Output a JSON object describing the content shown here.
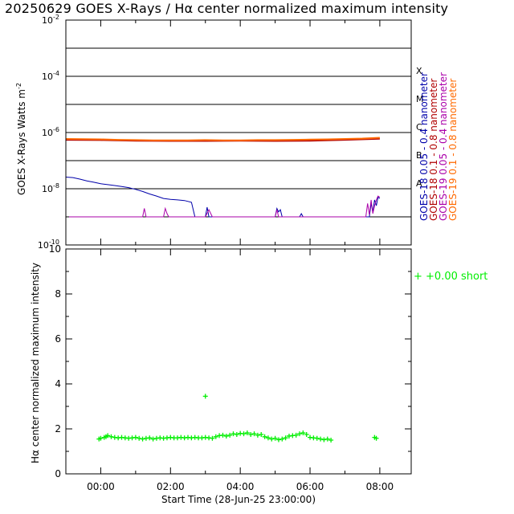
{
  "title": "20250629 GOES X-Rays / Hα center normalized maximum intensity",
  "chart_data": [
    {
      "type": "line",
      "ylabel": "GOES X-Rays Watts m",
      "ylabel_superscript": "-2",
      "yscale": "log",
      "ylim": [
        1e-10,
        0.01
      ],
      "y_tick_mantissa": "10",
      "y_ticks": [
        {
          "exp": "-2",
          "v": 0.01
        },
        {
          "exp": "-4",
          "v": 0.0001
        },
        {
          "exp": "-6",
          "v": 1e-06
        },
        {
          "exp": "-8",
          "v": 1e-08
        },
        {
          "exp": "-10",
          "v": 1e-10
        }
      ],
      "flare_class_lines": [
        0.001,
        0.0001,
        1e-05,
        1e-06,
        1e-07,
        1e-08,
        1e-09
      ],
      "flare_classes": [
        {
          "label": "X",
          "v": 0.0001
        },
        {
          "label": "M",
          "v": 1e-05
        },
        {
          "label": "C",
          "v": 1e-06
        },
        {
          "label": "B",
          "v": 1e-07
        },
        {
          "label": "A",
          "v": 1e-08
        }
      ],
      "xlim_hours": [
        -1.0,
        8.9
      ],
      "grid": false,
      "legend_position": "right, vertical",
      "series": [
        {
          "name": "GOES-18  0.05 - 0.4 nanometer",
          "color": "#0000aa",
          "x": [
            -1.0,
            -0.8,
            -0.6,
            -0.4,
            -0.2,
            0.0,
            0.2,
            0.4,
            0.6,
            0.8,
            1.0,
            1.2,
            1.4,
            1.6,
            1.8,
            2.0,
            2.2,
            2.4,
            2.6,
            2.7,
            2.8,
            2.9,
            3.0,
            3.05,
            3.1,
            3.2,
            3.3,
            3.4,
            3.5,
            3.6,
            3.7,
            3.8,
            3.9,
            4.0,
            4.5,
            5.0,
            5.05,
            5.1,
            5.15,
            5.2,
            5.3,
            5.5,
            5.7,
            5.75,
            5.8,
            5.9,
            6.0,
            6.5,
            7.0,
            7.5,
            7.7,
            7.75,
            7.8,
            7.85,
            7.9,
            7.95,
            8.0
          ],
          "y": [
            2.6e-08,
            2.5e-08,
            2.2e-08,
            1.9e-08,
            1.7e-08,
            1.5e-08,
            1.4e-08,
            1.3e-08,
            1.2e-08,
            1.1e-08,
            9.5e-09,
            8e-09,
            6.5e-09,
            5.5e-09,
            4.5e-09,
            4.2e-09,
            4e-09,
            3.8e-09,
            3.3e-09,
            1e-09,
            1e-09,
            1e-09,
            1e-09,
            2.2e-09,
            1e-09,
            1e-09,
            1e-09,
            1e-09,
            1e-09,
            1e-09,
            1e-09,
            1e-09,
            1e-09,
            1e-09,
            1e-09,
            1e-09,
            2e-09,
            1.5e-09,
            1.8e-09,
            1e-09,
            1e-09,
            1e-09,
            1e-09,
            1.3e-09,
            1e-09,
            1e-09,
            1e-09,
            1e-09,
            1e-09,
            1e-09,
            1e-09,
            3e-09,
            1.5e-09,
            4e-09,
            2.5e-09,
            5e-09,
            4.5e-09
          ]
        },
        {
          "name": "GOES-18  0.1 - 0.8 nanometer",
          "color": "#b00000",
          "x": [
            -1.0,
            0.0,
            1.0,
            2.0,
            3.0,
            4.0,
            5.0,
            6.0,
            7.0,
            8.0
          ],
          "y": [
            5.5e-07,
            5.4e-07,
            5.1e-07,
            5e-07,
            5e-07,
            5.1e-07,
            5e-07,
            5.1e-07,
            5.5e-07,
            6e-07
          ]
        },
        {
          "name": "GOES-19  0.05 - 0.4 nanometer",
          "color": "#aa00aa",
          "x": [
            -1.0,
            1.2,
            1.25,
            1.3,
            1.35,
            1.5,
            1.8,
            1.85,
            1.9,
            1.95,
            2.0,
            3.0,
            3.1,
            3.2,
            3.4,
            3.5,
            3.6,
            4.0,
            5.0,
            5.05,
            5.1,
            5.2,
            6.0,
            7.6,
            7.65,
            7.7,
            7.75,
            7.8,
            7.85,
            7.9,
            7.95,
            8.0
          ],
          "y": [
            1e-09,
            1e-09,
            2e-09,
            1e-09,
            1e-09,
            1e-09,
            1e-09,
            2e-09,
            1.3e-09,
            1e-09,
            1e-09,
            1e-09,
            1.8e-09,
            1e-09,
            1e-09,
            1e-09,
            1e-09,
            1e-09,
            1e-09,
            1.8e-09,
            1e-09,
            1e-09,
            1e-09,
            1e-09,
            3e-09,
            1.2e-09,
            4e-09,
            1.3e-09,
            2.5e-09,
            4e-09,
            5.5e-09,
            5e-09
          ]
        },
        {
          "name": "GOES-19  0.1 - 0.8 nanometer",
          "color": "#ff6a00",
          "x": [
            -1.0,
            -0.5,
            0.0,
            0.5,
            1.0,
            1.5,
            2.0,
            2.5,
            3.0,
            3.5,
            4.0,
            4.5,
            5.0,
            5.5,
            6.0,
            6.5,
            7.0,
            7.5,
            8.0
          ],
          "y": [
            5.9e-07,
            5.8e-07,
            5.7e-07,
            5.5e-07,
            5.4e-07,
            5.3e-07,
            5.3e-07,
            5.3e-07,
            5.4e-07,
            5.3e-07,
            5.3e-07,
            5.4e-07,
            5.4e-07,
            5.5e-07,
            5.6e-07,
            5.7e-07,
            5.9e-07,
            6.1e-07,
            6.5e-07
          ]
        }
      ]
    },
    {
      "type": "scatter",
      "xlabel": "Start Time (28-Jun-25 23:00:00)",
      "ylabel": "Hα center normalized maximum intensity",
      "ylim": [
        0,
        10
      ],
      "y_ticks": [
        0,
        2,
        4,
        6,
        8,
        10
      ],
      "xlim_hours": [
        -1.0,
        8.9
      ],
      "x_ticks": [
        {
          "label": "00:00",
          "v": 0
        },
        {
          "label": "02:00",
          "v": 2
        },
        {
          "label": "04:00",
          "v": 4
        },
        {
          "label": "06:00",
          "v": 6
        },
        {
          "label": "08:00",
          "v": 8
        }
      ],
      "grid": false,
      "legend_position": "right, top",
      "legend": "+  +0.00 short",
      "marker": "+",
      "color": "#00ee00",
      "series": [
        {
          "x": [
            -0.05,
            0.0,
            0.1,
            0.15,
            0.2,
            0.3,
            0.4,
            0.5,
            0.6,
            0.7,
            0.8,
            0.9,
            1.0,
            1.1,
            1.2,
            1.3,
            1.4,
            1.5,
            1.6,
            1.7,
            1.8,
            1.9,
            2.0,
            2.1,
            2.2,
            2.3,
            2.4,
            2.5,
            2.6,
            2.7,
            2.8,
            2.9,
            3.0,
            3.1,
            3.2,
            3.3,
            3.4,
            3.5,
            3.6,
            3.7,
            3.8,
            3.9,
            4.0,
            4.1,
            4.2,
            4.3,
            4.4,
            4.5,
            4.6,
            4.7,
            4.8,
            4.9,
            5.0,
            5.1,
            5.2,
            5.3,
            5.4,
            5.5,
            5.6,
            5.7,
            5.8,
            5.9,
            6.0,
            6.1,
            6.2,
            6.3,
            6.4,
            6.5,
            6.6,
            7.85,
            7.9
          ],
          "y": [
            1.55,
            1.58,
            1.62,
            1.65,
            1.7,
            1.65,
            1.62,
            1.6,
            1.62,
            1.6,
            1.58,
            1.6,
            1.62,
            1.58,
            1.55,
            1.58,
            1.6,
            1.55,
            1.58,
            1.6,
            1.58,
            1.6,
            1.62,
            1.6,
            1.6,
            1.62,
            1.6,
            1.62,
            1.6,
            1.62,
            1.6,
            1.6,
            1.62,
            1.6,
            1.58,
            1.65,
            1.7,
            1.72,
            1.68,
            1.72,
            1.78,
            1.75,
            1.8,
            1.78,
            1.82,
            1.75,
            1.78,
            1.72,
            1.75,
            1.65,
            1.6,
            1.55,
            1.58,
            1.52,
            1.55,
            1.6,
            1.68,
            1.7,
            1.72,
            1.78,
            1.82,
            1.75,
            1.62,
            1.6,
            1.58,
            1.55,
            1.52,
            1.55,
            1.5,
            1.62,
            1.58
          ]
        },
        {
          "x": [
            3.0
          ],
          "y": [
            3.45
          ]
        }
      ]
    }
  ]
}
